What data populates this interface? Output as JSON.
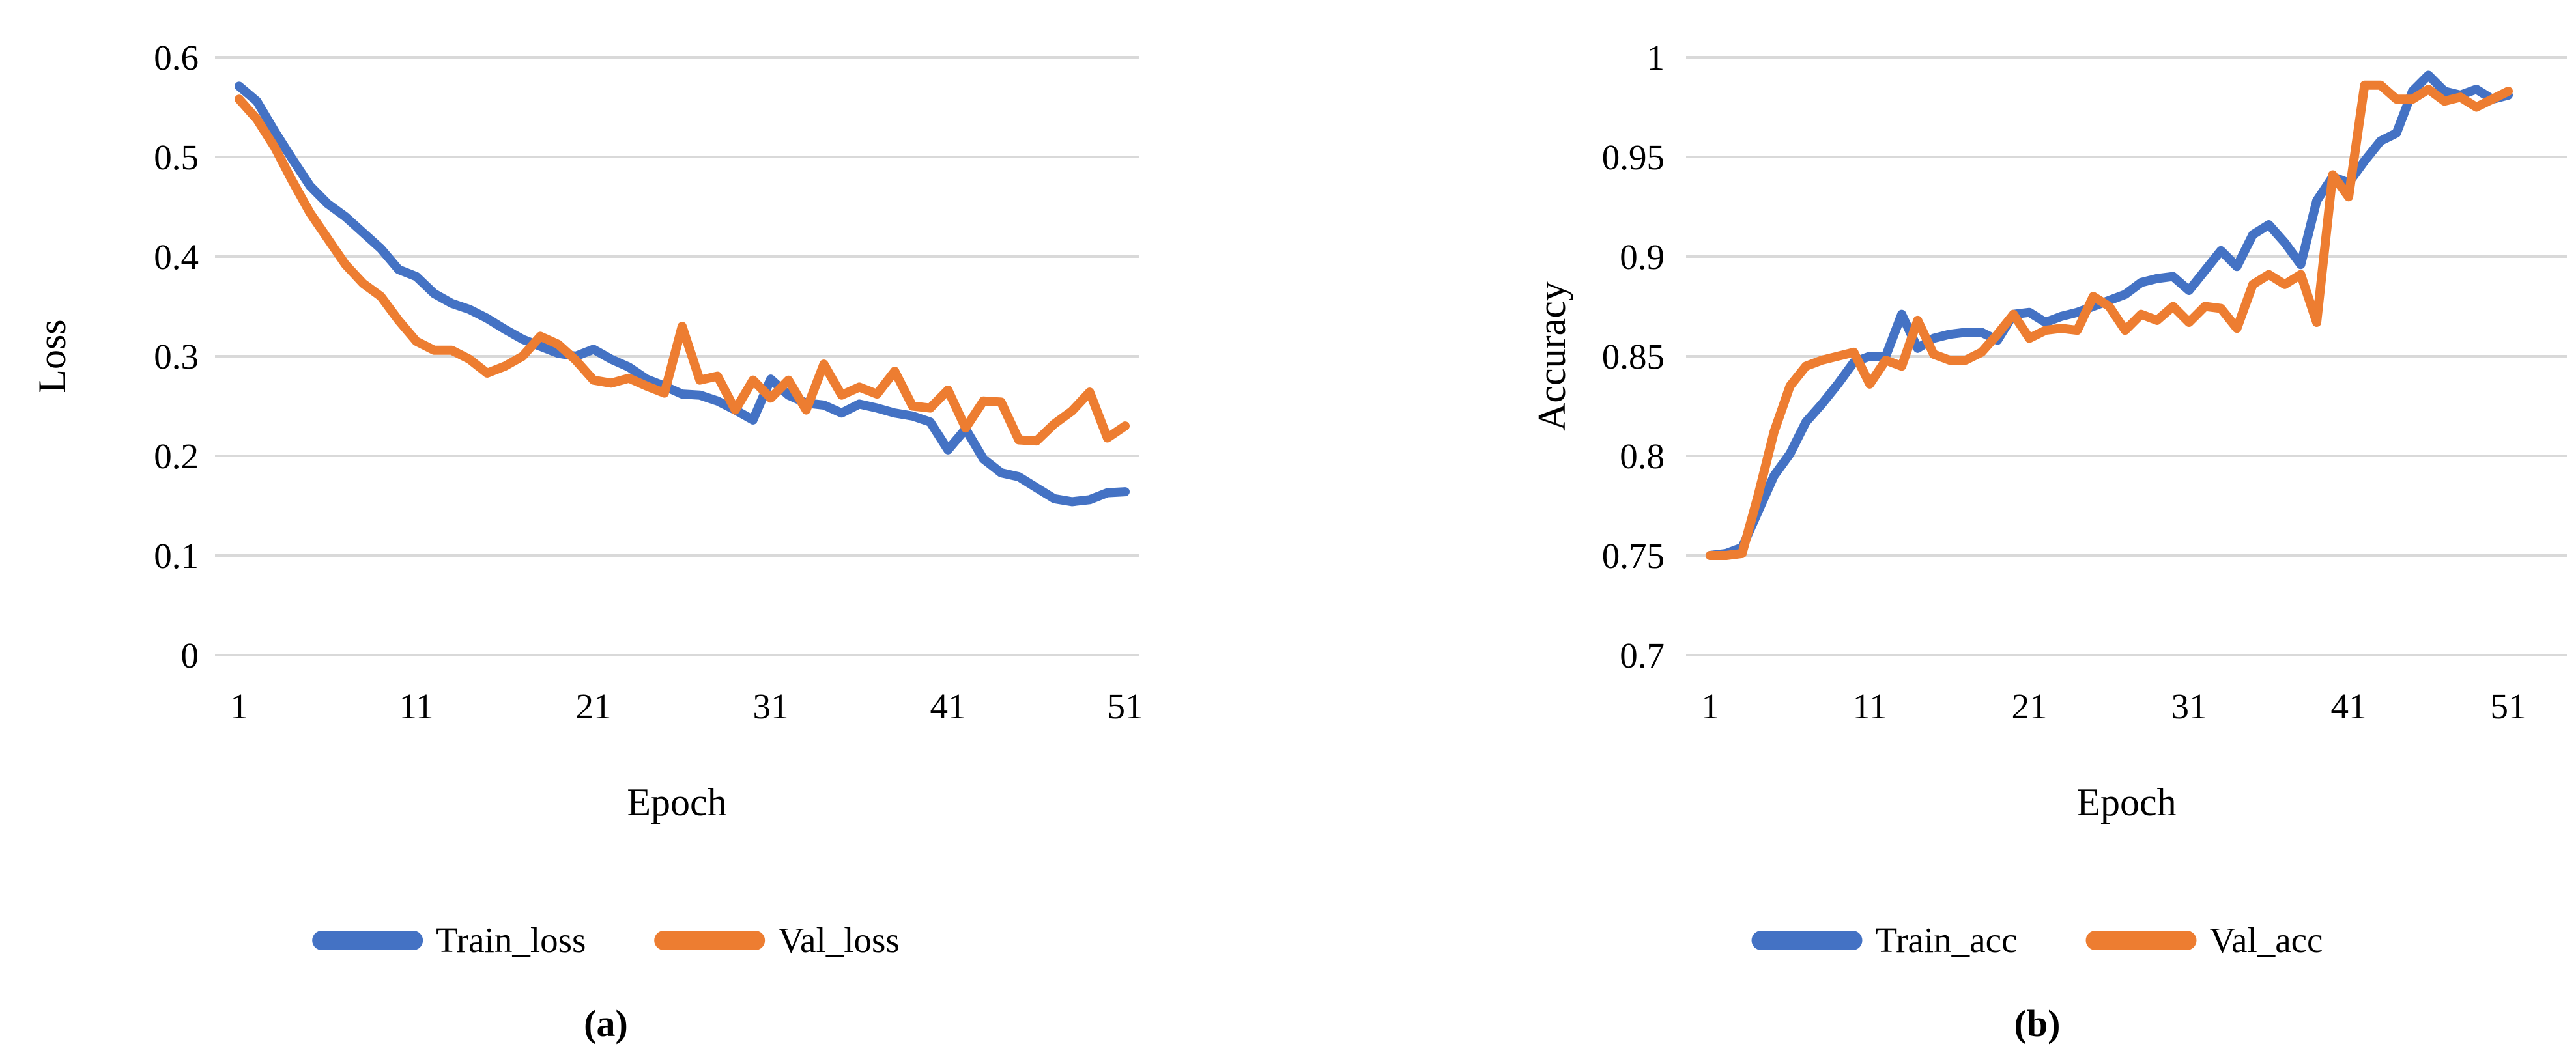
{
  "chart_data": [
    {
      "type": "line",
      "caption": "(a)",
      "xlabel": "Epoch",
      "ylabel": "Loss",
      "x_ticks": [
        1,
        11,
        21,
        31,
        41,
        51
      ],
      "x_range": [
        1,
        51
      ],
      "ylim": [
        0,
        0.6
      ],
      "grid": "horizontal-only",
      "legend_position": "bottom",
      "gridline_color": "#D9D9D9",
      "y_ticks": [
        {
          "label": "0.6",
          "value": 0.6
        },
        {
          "label": "0.5",
          "value": 0.5
        },
        {
          "label": "0.4",
          "value": 0.4
        },
        {
          "label": "0.3",
          "value": 0.3
        },
        {
          "label": "0.2",
          "value": 0.2
        },
        {
          "label": "0.1",
          "value": 0.1
        },
        {
          "label": "0",
          "value": 0
        }
      ],
      "series": [
        {
          "name": "Train_loss",
          "color": "#4472C4",
          "values": [
            0.571,
            0.556,
            0.526,
            0.498,
            0.471,
            0.453,
            0.44,
            0.424,
            0.408,
            0.387,
            0.38,
            0.363,
            0.353,
            0.347,
            0.338,
            0.327,
            0.317,
            0.31,
            0.303,
            0.3,
            0.307,
            0.297,
            0.289,
            0.277,
            0.27,
            0.262,
            0.261,
            0.255,
            0.246,
            0.236,
            0.277,
            0.261,
            0.253,
            0.251,
            0.243,
            0.252,
            0.248,
            0.243,
            0.24,
            0.234,
            0.206,
            0.227,
            0.197,
            0.183,
            0.179,
            0.168,
            0.157,
            0.154,
            0.156,
            0.163,
            0.164
          ]
        },
        {
          "name": "Val_loss",
          "color": "#ED7D31",
          "values": [
            0.558,
            0.538,
            0.51,
            0.476,
            0.444,
            0.418,
            0.392,
            0.373,
            0.36,
            0.336,
            0.315,
            0.306,
            0.306,
            0.297,
            0.283,
            0.29,
            0.3,
            0.32,
            0.312,
            0.296,
            0.276,
            0.273,
            0.278,
            0.27,
            0.263,
            0.33,
            0.276,
            0.28,
            0.246,
            0.276,
            0.258,
            0.276,
            0.246,
            0.292,
            0.261,
            0.269,
            0.262,
            0.285,
            0.25,
            0.248,
            0.266,
            0.228,
            0.255,
            0.254,
            0.216,
            0.215,
            0.232,
            0.245,
            0.264,
            0.218,
            0.23
          ]
        }
      ]
    },
    {
      "type": "line",
      "caption": "(b)",
      "xlabel": "Epoch",
      "ylabel": "Accuracy",
      "x_ticks": [
        1,
        11,
        21,
        31,
        41,
        51
      ],
      "x_range": [
        1,
        51
      ],
      "ylim": [
        0.7,
        1.0
      ],
      "grid": "horizontal-only",
      "legend_position": "bottom",
      "gridline_color": "#D9D9D9",
      "y_ticks": [
        {
          "label": "1",
          "value": 1.0
        },
        {
          "label": "0.95",
          "value": 0.95
        },
        {
          "label": "0.9",
          "value": 0.9
        },
        {
          "label": "0.85",
          "value": 0.85
        },
        {
          "label": "0.8",
          "value": 0.8
        },
        {
          "label": "0.75",
          "value": 0.75
        },
        {
          "label": "0.7",
          "value": 0.7
        }
      ],
      "series": [
        {
          "name": "Train_acc",
          "color": "#4472C4",
          "values": [
            0.75,
            0.751,
            0.754,
            0.772,
            0.79,
            0.801,
            0.817,
            0.826,
            0.836,
            0.847,
            0.85,
            0.85,
            0.871,
            0.854,
            0.859,
            0.861,
            0.862,
            0.862,
            0.858,
            0.871,
            0.872,
            0.867,
            0.87,
            0.872,
            0.875,
            0.878,
            0.881,
            0.887,
            0.889,
            0.89,
            0.883,
            0.893,
            0.903,
            0.895,
            0.911,
            0.916,
            0.907,
            0.896,
            0.928,
            0.94,
            0.937,
            0.948,
            0.958,
            0.962,
            0.983,
            0.991,
            0.983,
            0.981,
            0.984,
            0.979,
            0.981
          ]
        },
        {
          "name": "Val_acc",
          "color": "#ED7D31",
          "values": [
            0.75,
            0.75,
            0.751,
            0.78,
            0.812,
            0.835,
            0.845,
            0.848,
            0.85,
            0.852,
            0.836,
            0.848,
            0.845,
            0.868,
            0.851,
            0.848,
            0.848,
            0.852,
            0.861,
            0.871,
            0.859,
            0.863,
            0.864,
            0.863,
            0.88,
            0.875,
            0.863,
            0.871,
            0.868,
            0.875,
            0.867,
            0.875,
            0.874,
            0.864,
            0.886,
            0.891,
            0.886,
            0.891,
            0.867,
            0.941,
            0.93,
            0.986,
            0.986,
            0.979,
            0.979,
            0.984,
            0.978,
            0.98,
            0.975,
            0.979,
            0.983
          ]
        }
      ]
    }
  ]
}
